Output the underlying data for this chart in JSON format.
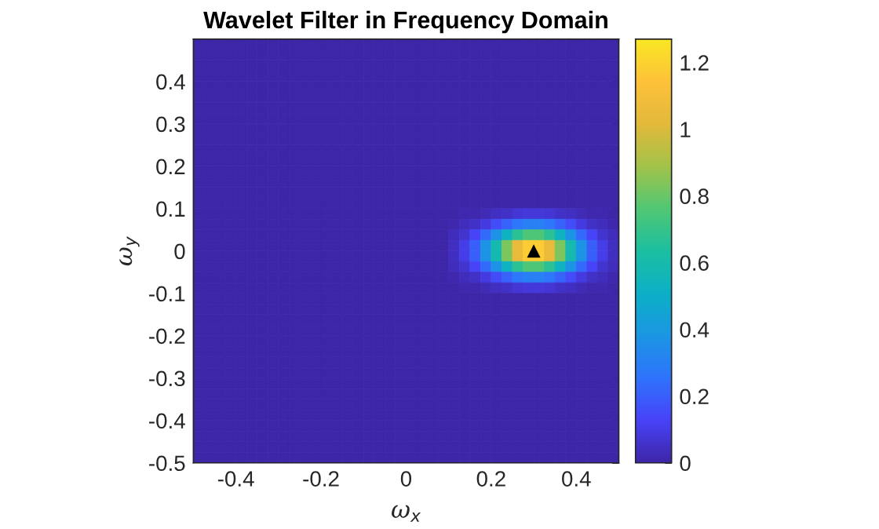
{
  "chart_data": {
    "type": "heatmap",
    "title": "Wavelet Filter in Frequency Domain",
    "xlabel": "ω$_{x}$",
    "ylabel": "ω$_{y}$",
    "x": [
      -0.4875,
      -0.4625,
      -0.4375,
      -0.4125,
      -0.3875,
      -0.3625,
      -0.3375,
      -0.3125,
      -0.2875,
      -0.2625,
      -0.2375,
      -0.2125,
      -0.1875,
      -0.1625,
      -0.1375,
      -0.1125,
      -0.0875,
      -0.0625,
      -0.0375,
      -0.0125,
      0.0125,
      0.0375,
      0.0625,
      0.0875,
      0.1125,
      0.1375,
      0.1625,
      0.1875,
      0.2125,
      0.2375,
      0.2625,
      0.2875,
      0.3125,
      0.3375,
      0.3625,
      0.3875,
      0.4125,
      0.4375,
      0.4625,
      0.4875
    ],
    "y": [
      0.4875,
      0.4625,
      0.4375,
      0.4125,
      0.3875,
      0.3625,
      0.3375,
      0.3125,
      0.2875,
      0.2625,
      0.2375,
      0.2125,
      0.1875,
      0.1625,
      0.1375,
      0.1125,
      0.0875,
      0.0625,
      0.0375,
      0.0125,
      -0.0125,
      -0.0375,
      -0.0625,
      -0.0875,
      -0.1125,
      -0.1375,
      -0.1625,
      -0.1875,
      -0.2125,
      -0.2375,
      -0.2625,
      -0.2875,
      -0.3125,
      -0.3375,
      -0.3625,
      -0.3875,
      -0.4125,
      -0.4375,
      -0.4625,
      -0.4875
    ],
    "xlim": [
      -0.5,
      0.5
    ],
    "ylim": [
      -0.5,
      0.5
    ],
    "xticks": [
      -0.4,
      -0.2,
      0,
      0.2,
      0.4
    ],
    "yticks": [
      -0.5,
      -0.4,
      -0.3,
      -0.2,
      -0.1,
      0,
      0.1,
      0.2,
      0.3,
      0.4
    ],
    "clim": [
      0,
      1.27
    ],
    "cticks": [
      0,
      0.2,
      0.4,
      0.6,
      0.8,
      1,
      1.2
    ],
    "cells": [
      [
        0,
        0,
        0,
        0,
        0,
        0,
        0,
        0,
        0,
        0,
        0,
        0,
        0,
        0,
        0,
        0,
        0,
        0,
        0,
        0,
        0,
        0,
        0,
        0,
        0,
        0,
        0,
        0,
        0,
        0,
        0,
        0,
        0,
        0,
        0,
        0,
        0,
        0,
        0,
        0
      ],
      [
        0,
        0,
        0,
        0,
        0,
        0,
        0,
        0,
        0,
        0,
        0,
        0,
        0,
        0,
        0,
        0,
        0,
        0,
        0,
        0,
        0,
        0,
        0,
        0,
        0,
        0,
        0,
        0,
        0,
        0,
        0,
        0,
        0,
        0,
        0,
        0,
        0,
        0,
        0,
        0
      ],
      [
        0,
        0,
        0,
        0,
        0,
        0,
        0,
        0,
        0,
        0,
        0,
        0,
        0,
        0,
        0,
        0,
        0,
        0,
        0,
        0,
        0,
        0,
        0,
        0,
        0,
        0,
        0,
        0,
        0,
        0,
        0,
        0,
        0,
        0,
        0,
        0,
        0,
        0,
        0,
        0
      ],
      [
        0,
        0,
        0,
        0,
        0,
        0,
        0,
        0,
        0,
        0,
        0,
        0,
        0,
        0,
        0,
        0,
        0,
        0,
        0,
        0,
        0,
        0,
        0,
        0,
        0,
        0,
        0,
        0,
        0,
        0,
        0,
        0,
        0,
        0,
        0,
        0,
        0,
        0,
        0,
        0
      ],
      [
        0,
        0,
        0,
        0,
        0,
        0,
        0,
        0,
        0,
        0,
        0,
        0,
        0,
        0,
        0,
        0,
        0,
        0,
        0,
        0,
        0,
        0,
        0,
        0,
        0,
        0,
        0,
        0,
        0,
        0,
        0,
        0,
        0,
        0,
        0,
        0,
        0,
        0,
        0,
        0
      ],
      [
        0,
        0,
        0,
        0,
        0,
        0,
        0,
        0,
        0,
        0,
        0,
        0,
        0,
        0,
        0,
        0,
        0,
        0,
        0,
        0,
        0,
        0,
        0,
        0,
        0,
        0,
        0,
        0,
        0,
        0,
        0,
        0,
        0,
        0,
        0,
        0,
        0,
        0,
        0,
        0
      ],
      [
        0,
        0,
        0,
        0,
        0,
        0,
        0,
        0,
        0,
        0,
        0,
        0,
        0,
        0,
        0,
        0,
        0,
        0,
        0,
        0,
        0,
        0,
        0,
        0,
        0,
        0,
        0,
        0,
        0,
        0,
        0,
        0,
        0,
        0,
        0,
        0,
        0,
        0,
        0,
        0
      ],
      [
        0,
        0,
        0,
        0,
        0,
        0,
        0,
        0,
        0,
        0,
        0,
        0,
        0,
        0,
        0,
        0,
        0,
        0,
        0,
        0,
        0,
        0,
        0,
        0,
        0,
        0,
        0,
        0,
        0,
        0,
        0,
        0,
        0,
        0,
        0,
        0,
        0,
        0,
        0,
        0
      ],
      [
        0,
        0,
        0,
        0,
        0,
        0,
        0,
        0,
        0,
        0,
        0,
        0,
        0,
        0,
        0,
        0,
        0,
        0,
        0,
        0,
        0,
        0,
        0,
        0,
        0,
        0,
        0,
        0,
        0,
        0,
        0,
        0,
        0,
        0,
        0,
        0,
        0,
        0,
        0,
        0
      ],
      [
        0,
        0,
        0,
        0,
        0,
        0,
        0,
        0,
        0,
        0,
        0,
        0,
        0,
        0,
        0,
        0,
        0,
        0,
        0,
        0,
        0,
        0,
        0,
        0,
        0,
        0,
        0,
        0,
        0,
        0,
        0,
        0,
        0,
        0,
        0,
        0,
        0,
        0,
        0,
        0
      ],
      [
        0,
        0,
        0,
        0,
        0,
        0,
        0,
        0,
        0,
        0,
        0,
        0,
        0,
        0,
        0,
        0,
        0,
        0,
        0,
        0,
        0,
        0,
        0,
        0,
        0,
        0,
        0,
        0,
        0,
        0,
        0,
        0,
        0,
        0,
        0,
        0,
        0,
        0,
        0,
        0
      ],
      [
        0,
        0,
        0,
        0,
        0,
        0,
        0,
        0,
        0,
        0,
        0,
        0,
        0,
        0,
        0,
        0,
        0,
        0,
        0,
        0,
        0,
        0,
        0,
        0,
        0,
        0,
        0,
        0,
        0,
        0,
        0,
        0,
        0,
        0,
        0,
        0,
        0,
        0,
        0,
        0
      ],
      [
        0,
        0,
        0,
        0,
        0,
        0,
        0,
        0,
        0,
        0,
        0,
        0,
        0,
        0,
        0,
        0,
        0,
        0,
        0,
        0,
        0,
        0,
        0,
        0,
        0,
        0,
        0,
        0,
        0,
        0,
        0,
        0,
        0,
        0,
        0,
        0,
        0,
        0,
        0,
        0
      ],
      [
        0,
        0,
        0,
        0,
        0,
        0,
        0,
        0,
        0,
        0,
        0,
        0,
        0,
        0,
        0,
        0,
        0,
        0,
        0,
        0,
        0,
        0,
        0,
        0,
        0,
        0,
        0,
        0,
        0,
        0,
        0,
        0,
        0,
        0,
        0,
        0,
        0,
        0,
        0,
        0
      ],
      [
        0,
        0,
        0,
        0,
        0,
        0,
        0,
        0,
        0,
        0,
        0,
        0,
        0,
        0,
        0,
        0,
        0,
        0,
        0,
        0,
        0,
        0,
        0,
        0,
        0,
        0,
        0,
        0,
        0,
        0,
        0,
        0,
        0,
        0,
        0,
        0,
        0,
        0,
        0,
        0
      ],
      [
        0,
        0,
        0,
        0,
        0,
        0,
        0,
        0,
        0,
        0,
        0,
        0,
        0,
        0,
        0,
        0,
        0,
        0,
        0,
        0,
        0,
        0,
        0,
        0,
        0,
        0,
        0,
        0,
        0,
        0,
        0,
        0,
        0,
        0,
        0,
        0,
        0,
        0,
        0,
        0
      ],
      [
        0,
        0,
        0,
        0,
        0,
        0,
        0,
        0,
        0,
        0,
        0,
        0,
        0,
        0,
        0,
        0,
        0,
        0,
        0,
        0,
        0,
        0,
        0,
        0,
        0,
        0.01,
        0.01,
        0.02,
        0.04,
        0.05,
        0.07,
        0.08,
        0.08,
        0.07,
        0.05,
        0.04,
        0.02,
        0.01,
        0.01,
        0
      ],
      [
        0,
        0,
        0,
        0,
        0,
        0,
        0,
        0,
        0,
        0,
        0,
        0,
        0,
        0,
        0,
        0,
        0,
        0,
        0,
        0,
        0,
        0,
        0,
        0,
        0.01,
        0.03,
        0.05,
        0.09,
        0.15,
        0.21,
        0.27,
        0.3,
        0.3,
        0.27,
        0.21,
        0.15,
        0.09,
        0.05,
        0.03,
        0.01
      ],
      [
        0,
        0,
        0,
        0,
        0,
        0,
        0,
        0,
        0,
        0,
        0,
        0,
        0,
        0,
        0,
        0,
        0,
        0,
        0,
        0,
        0,
        0,
        0,
        0,
        0.03,
        0.06,
        0.13,
        0.23,
        0.37,
        0.53,
        0.67,
        0.75,
        0.75,
        0.67,
        0.53,
        0.37,
        0.23,
        0.13,
        0.06,
        0.03
      ],
      [
        0,
        0,
        0,
        0,
        0,
        0,
        0,
        0,
        0,
        0,
        0,
        0,
        0,
        0,
        0,
        0,
        0,
        0,
        0,
        0,
        0,
        0,
        0,
        0,
        0.04,
        0.1,
        0.2,
        0.37,
        0.59,
        0.83,
        1.05,
        1.18,
        1.18,
        1.05,
        0.83,
        0.59,
        0.37,
        0.2,
        0.1,
        0.04
      ],
      [
        0,
        0,
        0,
        0,
        0,
        0,
        0,
        0,
        0,
        0,
        0,
        0,
        0,
        0,
        0,
        0,
        0,
        0,
        0,
        0,
        0,
        0,
        0,
        0,
        0.04,
        0.1,
        0.2,
        0.37,
        0.59,
        0.83,
        1.05,
        1.18,
        1.18,
        1.05,
        0.83,
        0.59,
        0.37,
        0.2,
        0.1,
        0.04
      ],
      [
        0,
        0,
        0,
        0,
        0,
        0,
        0,
        0,
        0,
        0,
        0,
        0,
        0,
        0,
        0,
        0,
        0,
        0,
        0,
        0,
        0,
        0,
        0,
        0,
        0.03,
        0.06,
        0.13,
        0.23,
        0.37,
        0.53,
        0.67,
        0.75,
        0.75,
        0.67,
        0.53,
        0.37,
        0.23,
        0.13,
        0.06,
        0.03
      ],
      [
        0,
        0,
        0,
        0,
        0,
        0,
        0,
        0,
        0,
        0,
        0,
        0,
        0,
        0,
        0,
        0,
        0,
        0,
        0,
        0,
        0,
        0,
        0,
        0,
        0.01,
        0.03,
        0.05,
        0.09,
        0.15,
        0.21,
        0.27,
        0.3,
        0.3,
        0.27,
        0.21,
        0.15,
        0.09,
        0.05,
        0.03,
        0.01
      ],
      [
        0,
        0,
        0,
        0,
        0,
        0,
        0,
        0,
        0,
        0,
        0,
        0,
        0,
        0,
        0,
        0,
        0,
        0,
        0,
        0,
        0,
        0,
        0,
        0,
        0,
        0.01,
        0.01,
        0.02,
        0.04,
        0.05,
        0.07,
        0.08,
        0.08,
        0.07,
        0.05,
        0.04,
        0.02,
        0.01,
        0.01,
        0
      ],
      [
        0,
        0,
        0,
        0,
        0,
        0,
        0,
        0,
        0,
        0,
        0,
        0,
        0,
        0,
        0,
        0,
        0,
        0,
        0,
        0,
        0,
        0,
        0,
        0,
        0,
        0,
        0,
        0,
        0,
        0,
        0,
        0,
        0,
        0,
        0,
        0,
        0,
        0,
        0,
        0
      ],
      [
        0,
        0,
        0,
        0,
        0,
        0,
        0,
        0,
        0,
        0,
        0,
        0,
        0,
        0,
        0,
        0,
        0,
        0,
        0,
        0,
        0,
        0,
        0,
        0,
        0,
        0,
        0,
        0,
        0,
        0,
        0,
        0,
        0,
        0,
        0,
        0,
        0,
        0,
        0,
        0
      ],
      [
        0,
        0,
        0,
        0,
        0,
        0,
        0,
        0,
        0,
        0,
        0,
        0,
        0,
        0,
        0,
        0,
        0,
        0,
        0,
        0,
        0,
        0,
        0,
        0,
        0,
        0,
        0,
        0,
        0,
        0,
        0,
        0,
        0,
        0,
        0,
        0,
        0,
        0,
        0,
        0
      ],
      [
        0,
        0,
        0,
        0,
        0,
        0,
        0,
        0,
        0,
        0,
        0,
        0,
        0,
        0,
        0,
        0,
        0,
        0,
        0,
        0,
        0,
        0,
        0,
        0,
        0,
        0,
        0,
        0,
        0,
        0,
        0,
        0,
        0,
        0,
        0,
        0,
        0,
        0,
        0,
        0
      ],
      [
        0,
        0,
        0,
        0,
        0,
        0,
        0,
        0,
        0,
        0,
        0,
        0,
        0,
        0,
        0,
        0,
        0,
        0,
        0,
        0,
        0,
        0,
        0,
        0,
        0,
        0,
        0,
        0,
        0,
        0,
        0,
        0,
        0,
        0,
        0,
        0,
        0,
        0,
        0,
        0
      ],
      [
        0,
        0,
        0,
        0,
        0,
        0,
        0,
        0,
        0,
        0,
        0,
        0,
        0,
        0,
        0,
        0,
        0,
        0,
        0,
        0,
        0,
        0,
        0,
        0,
        0,
        0,
        0,
        0,
        0,
        0,
        0,
        0,
        0,
        0,
        0,
        0,
        0,
        0,
        0,
        0
      ],
      [
        0,
        0,
        0,
        0,
        0,
        0,
        0,
        0,
        0,
        0,
        0,
        0,
        0,
        0,
        0,
        0,
        0,
        0,
        0,
        0,
        0,
        0,
        0,
        0,
        0,
        0,
        0,
        0,
        0,
        0,
        0,
        0,
        0,
        0,
        0,
        0,
        0,
        0,
        0,
        0
      ],
      [
        0,
        0,
        0,
        0,
        0,
        0,
        0,
        0,
        0,
        0,
        0,
        0,
        0,
        0,
        0,
        0,
        0,
        0,
        0,
        0,
        0,
        0,
        0,
        0,
        0,
        0,
        0,
        0,
        0,
        0,
        0,
        0,
        0,
        0,
        0,
        0,
        0,
        0,
        0,
        0
      ],
      [
        0,
        0,
        0,
        0,
        0,
        0,
        0,
        0,
        0,
        0,
        0,
        0,
        0,
        0,
        0,
        0,
        0,
        0,
        0,
        0,
        0,
        0,
        0,
        0,
        0,
        0,
        0,
        0,
        0,
        0,
        0,
        0,
        0,
        0,
        0,
        0,
        0,
        0,
        0,
        0
      ],
      [
        0,
        0,
        0,
        0,
        0,
        0,
        0,
        0,
        0,
        0,
        0,
        0,
        0,
        0,
        0,
        0,
        0,
        0,
        0,
        0,
        0,
        0,
        0,
        0,
        0,
        0,
        0,
        0,
        0,
        0,
        0,
        0,
        0,
        0,
        0,
        0,
        0,
        0,
        0,
        0
      ],
      [
        0,
        0,
        0,
        0,
        0,
        0,
        0,
        0,
        0,
        0,
        0,
        0,
        0,
        0,
        0,
        0,
        0,
        0,
        0,
        0,
        0,
        0,
        0,
        0,
        0,
        0,
        0,
        0,
        0,
        0,
        0,
        0,
        0,
        0,
        0,
        0,
        0,
        0,
        0,
        0
      ],
      [
        0,
        0,
        0,
        0,
        0,
        0,
        0,
        0,
        0,
        0,
        0,
        0,
        0,
        0,
        0,
        0,
        0,
        0,
        0,
        0,
        0,
        0,
        0,
        0,
        0,
        0,
        0,
        0,
        0,
        0,
        0,
        0,
        0,
        0,
        0,
        0,
        0,
        0,
        0,
        0
      ],
      [
        0,
        0,
        0,
        0,
        0,
        0,
        0,
        0,
        0,
        0,
        0,
        0,
        0,
        0,
        0,
        0,
        0,
        0,
        0,
        0,
        0,
        0,
        0,
        0,
        0,
        0,
        0,
        0,
        0,
        0,
        0,
        0,
        0,
        0,
        0,
        0,
        0,
        0,
        0,
        0
      ],
      [
        0,
        0,
        0,
        0,
        0,
        0,
        0,
        0,
        0,
        0,
        0,
        0,
        0,
        0,
        0,
        0,
        0,
        0,
        0,
        0,
        0,
        0,
        0,
        0,
        0,
        0,
        0,
        0,
        0,
        0,
        0,
        0,
        0,
        0,
        0,
        0,
        0,
        0,
        0,
        0
      ],
      [
        0,
        0,
        0,
        0,
        0,
        0,
        0,
        0,
        0,
        0,
        0,
        0,
        0,
        0,
        0,
        0,
        0,
        0,
        0,
        0,
        0,
        0,
        0,
        0,
        0,
        0,
        0,
        0,
        0,
        0,
        0,
        0,
        0,
        0,
        0,
        0,
        0,
        0,
        0,
        0
      ],
      [
        0,
        0,
        0,
        0,
        0,
        0,
        0,
        0,
        0,
        0,
        0,
        0,
        0,
        0,
        0,
        0,
        0,
        0,
        0,
        0,
        0,
        0,
        0,
        0,
        0,
        0,
        0,
        0,
        0,
        0,
        0,
        0,
        0,
        0,
        0,
        0,
        0,
        0,
        0,
        0
      ]
    ],
    "series": [
      {
        "type": "scatter",
        "x": [
          0.3
        ],
        "values": [
          0
        ],
        "color": "#000000",
        "marker": "triangle"
      }
    ]
  }
}
